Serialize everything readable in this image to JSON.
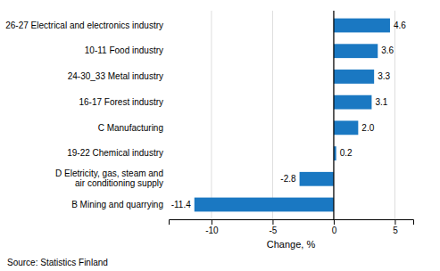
{
  "chart_data": {
    "type": "bar",
    "orientation": "horizontal",
    "categories": [
      "B Mining and quarrying",
      "D Eletricity, gas, steam and\nair conditioning supply",
      "19-22 Chemical industry",
      "C Manufacturing",
      "16-17 Forest industry",
      "24-30_33 Metal industry",
      "10-11 Food industry",
      "26-27 Electrical and electronics industry"
    ],
    "values": [
      -11.4,
      -2.8,
      0.2,
      2.0,
      3.1,
      3.3,
      3.6,
      4.6
    ],
    "value_labels": [
      "-11.4",
      "-2.8",
      "0.2",
      "2.0",
      "3.1",
      "3.3",
      "3.6",
      "4.6"
    ],
    "data_labels": true,
    "color": "#1a78c2",
    "xlabel": "Change, %",
    "source": "Source: Statistics Finland",
    "xlim": [
      -13.5,
      6.5
    ],
    "xticks": [
      -10,
      -5,
      0,
      5
    ],
    "grid": true
  }
}
